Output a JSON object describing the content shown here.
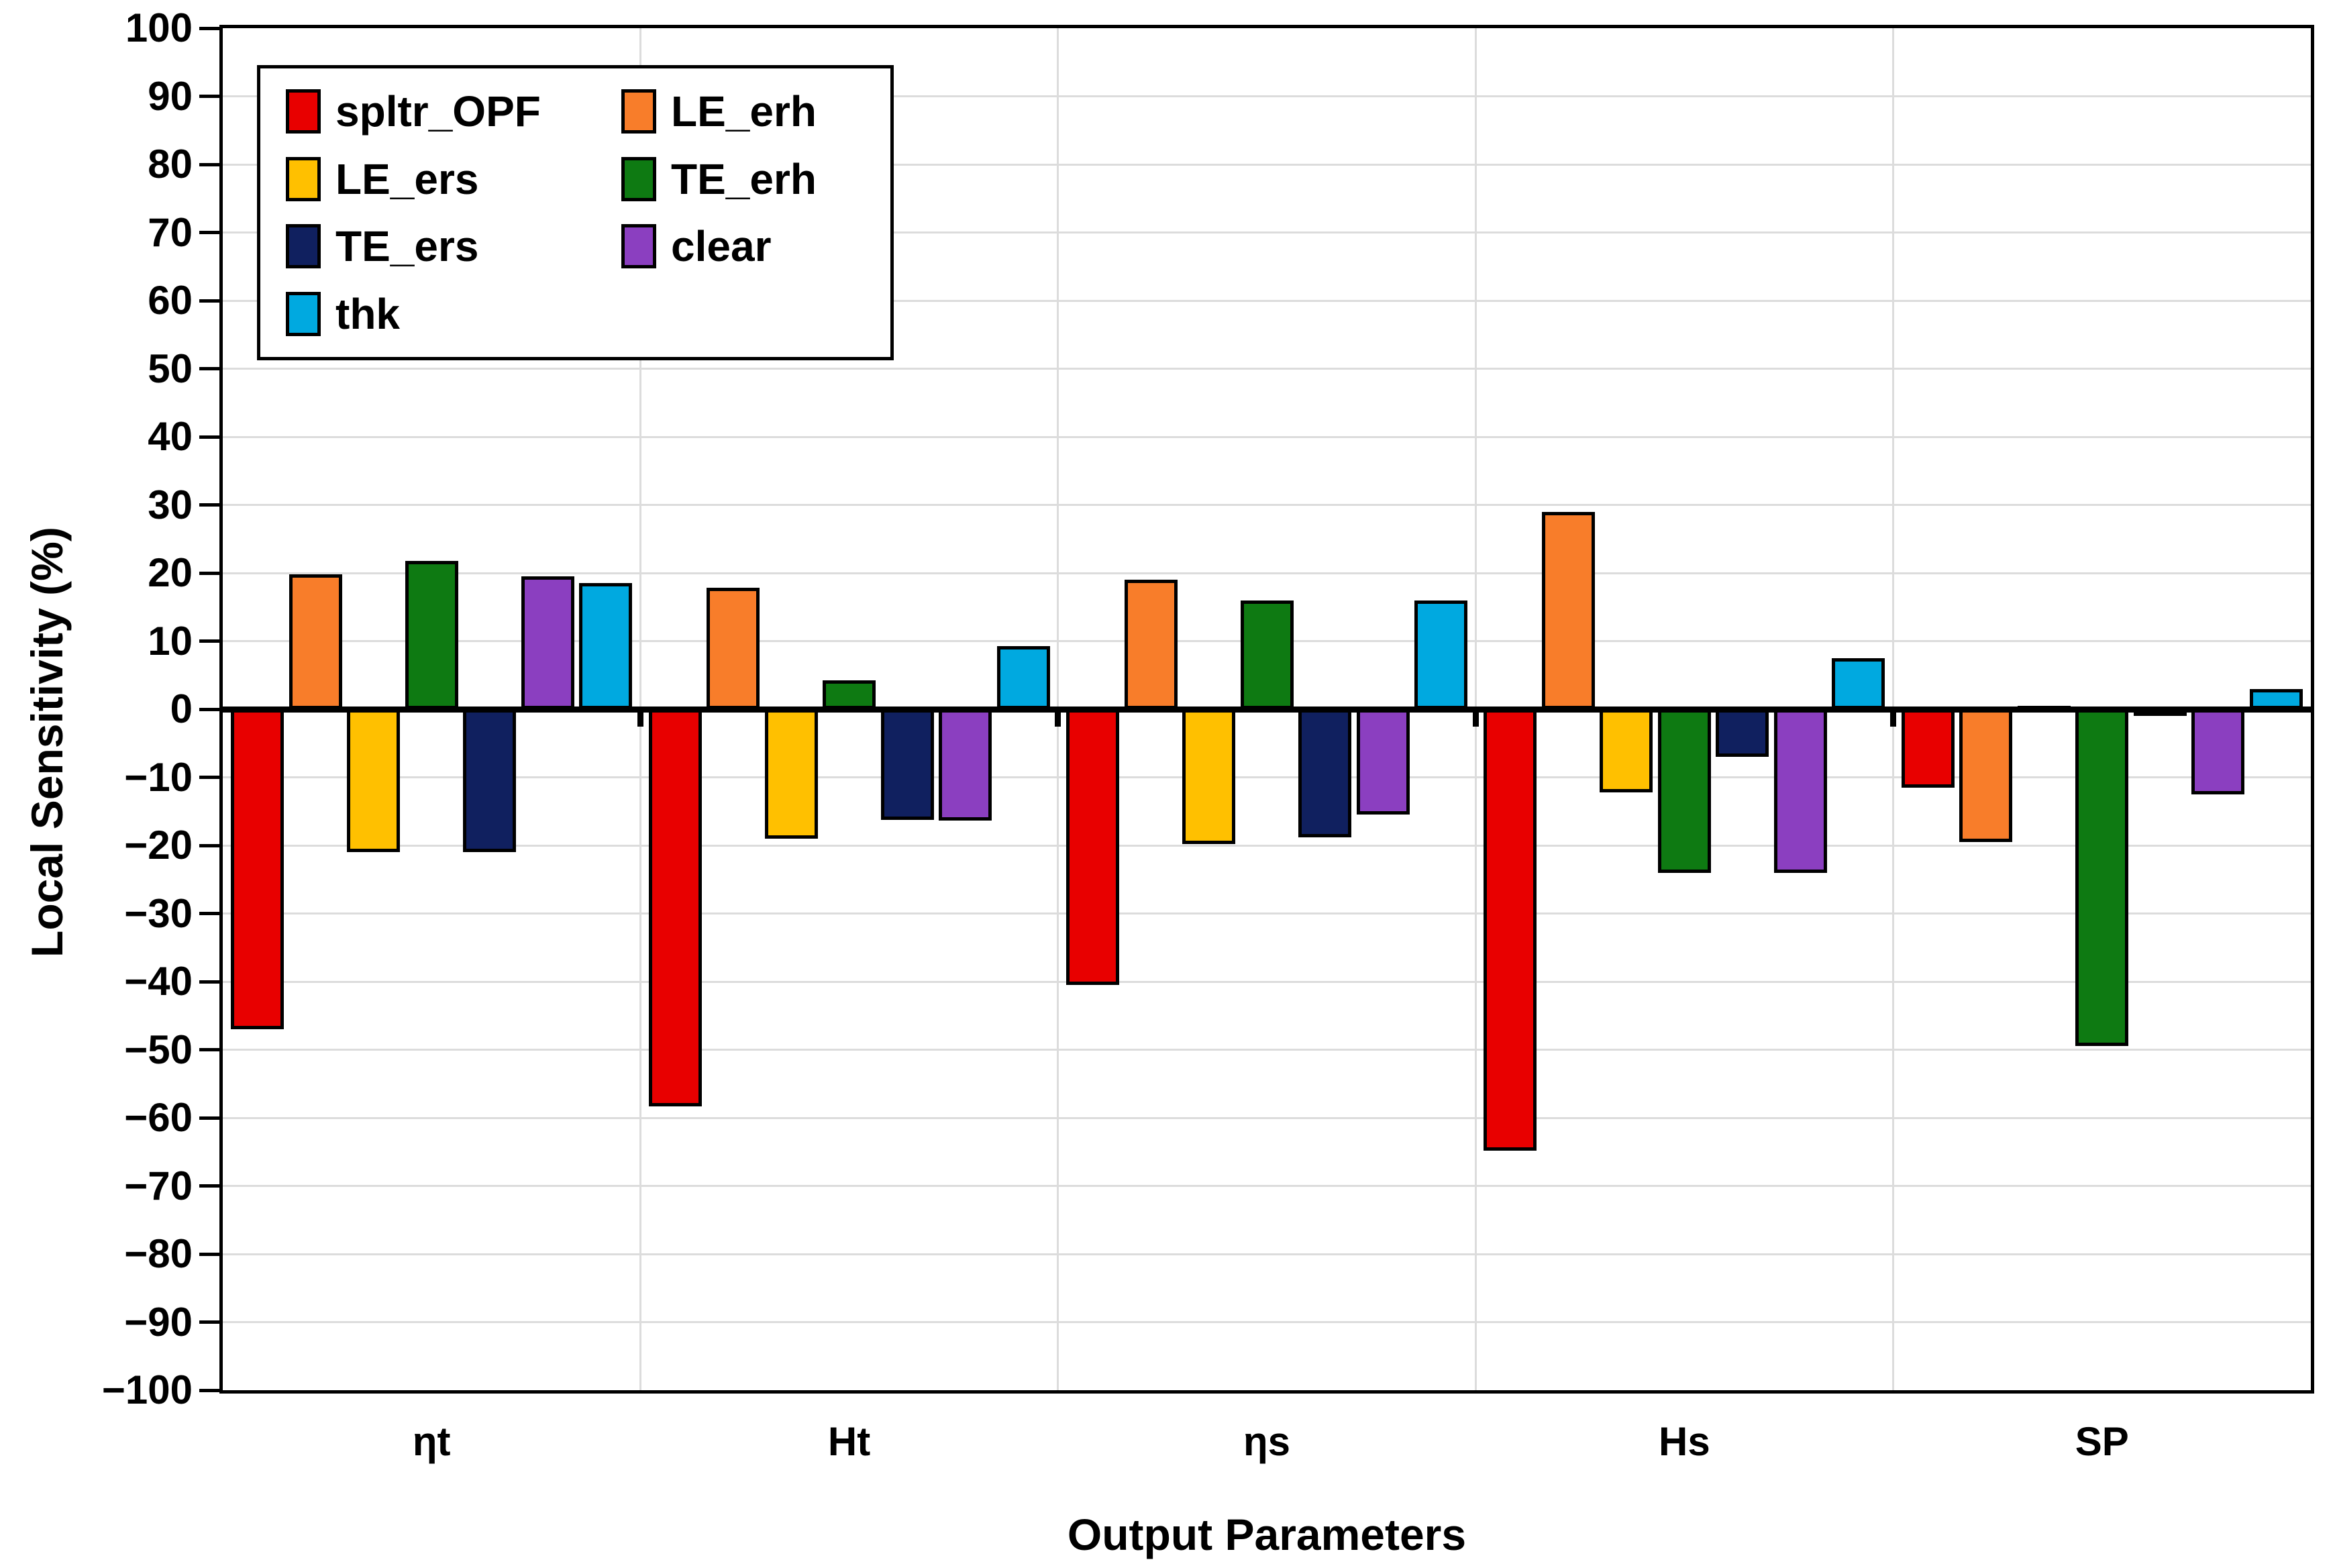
{
  "chart_data": {
    "type": "bar",
    "title": "",
    "xlabel": "Output Parameters",
    "ylabel": "Local Sensitivity (%)",
    "ylim": [
      -100,
      100
    ],
    "ytick_step": 10,
    "ytick_labels": [
      "100",
      "90",
      "80",
      "70",
      "60",
      "50",
      "40",
      "30",
      "20",
      "10",
      "0",
      "−10",
      "−20",
      "−30",
      "−40",
      "−50",
      "−60",
      "−70",
      "−80",
      "−90",
      "−100"
    ],
    "grid": "horizontal every 10 units, vertical at category boundaries",
    "legend_position": "top-left inside plot, 2 columns",
    "categories": [
      "ηt",
      "Ht",
      "ηs",
      "Hs",
      "SP"
    ],
    "series": [
      {
        "name": "spltr_OPF",
        "color": "#e80000",
        "values": [
          -47.0,
          -58.3,
          -40.5,
          -64.8,
          -11.5
        ]
      },
      {
        "name": "LE_erh",
        "color": "#f87d2a",
        "values": [
          19.8,
          17.8,
          19.0,
          29.0,
          -19.5
        ]
      },
      {
        "name": "LE_ers",
        "color": "#ffc000",
        "values": [
          -21.0,
          -19.0,
          -19.8,
          -12.2,
          0.5
        ]
      },
      {
        "name": "TE_erh",
        "color": "#0e7a12",
        "values": [
          21.8,
          4.2,
          16.0,
          -24.0,
          -49.5
        ]
      },
      {
        "name": "TE_ers",
        "color": "#10205f",
        "values": [
          -21.0,
          -16.3,
          -18.8,
          -7.0,
          -0.5
        ]
      },
      {
        "name": "clear",
        "color": "#8b3fc0",
        "values": [
          19.5,
          -16.4,
          -15.5,
          -24.0,
          -12.5
        ]
      },
      {
        "name": "thk",
        "color": "#00a9e0",
        "values": [
          18.5,
          9.3,
          16.0,
          7.5,
          3.0
        ]
      }
    ],
    "bar_outline_color": "#000000",
    "axis_color": "#000000",
    "gridline_color": "#dcdcdc"
  }
}
